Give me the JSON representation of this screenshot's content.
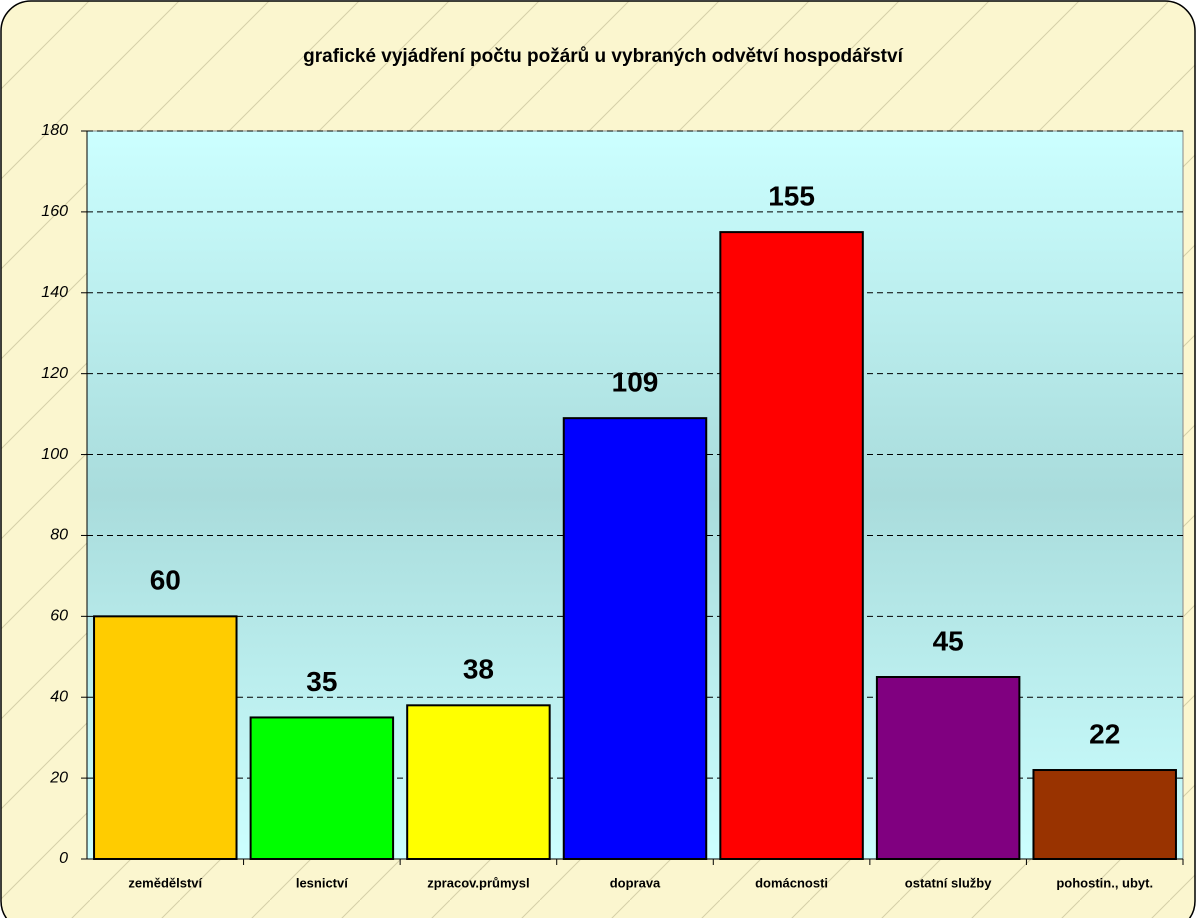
{
  "chart_data": {
    "type": "bar",
    "title": "grafické vyjádření počtu požárů u vybraných odvětví hospodářství",
    "categories": [
      "zemědělství",
      "lesnictví",
      "zpracov.průmysl",
      "doprava",
      "domácnosti",
      "ostatní služby",
      "pohostin., ubyt."
    ],
    "values": [
      60,
      35,
      38,
      109,
      155,
      45,
      22
    ],
    "colors": [
      "#ffcc00",
      "#00ff00",
      "#ffff00",
      "#0000ff",
      "#ff0000",
      "#800080",
      "#993300"
    ],
    "ylim": [
      0,
      180
    ],
    "yticks": [
      0,
      20,
      40,
      60,
      80,
      100,
      120,
      140,
      160,
      180
    ],
    "grid": true
  }
}
